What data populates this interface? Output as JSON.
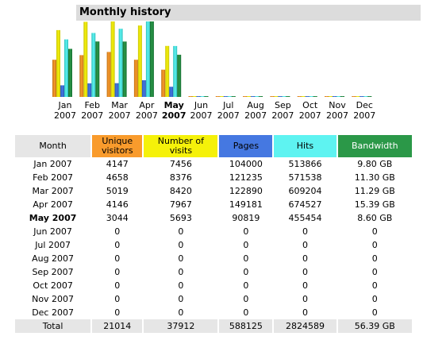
{
  "title": "Monthly history",
  "colors": {
    "uniq": "#f99b2c",
    "visits": "#f5f10a",
    "pages": "#4578e1",
    "hits": "#5ef3f1",
    "bandwidth": "#2b9848"
  },
  "chart_data": {
    "type": "bar",
    "categories": [
      "Jan 2007",
      "Feb 2007",
      "Mar 2007",
      "Apr 2007",
      "May 2007",
      "Jun 2007",
      "Jul 2007",
      "Aug 2007",
      "Sep 2007",
      "Oct 2007",
      "Nov 2007",
      "Dec 2007"
    ],
    "series": [
      {
        "name": "Unique visitors",
        "values": [
          4147,
          4658,
          5019,
          4146,
          3044,
          0,
          0,
          0,
          0,
          0,
          0,
          0
        ]
      },
      {
        "name": "Number of visits",
        "values": [
          7456,
          8376,
          8420,
          7967,
          5693,
          0,
          0,
          0,
          0,
          0,
          0,
          0
        ]
      },
      {
        "name": "Pages",
        "values": [
          104000,
          121235,
          122890,
          149181,
          90819,
          0,
          0,
          0,
          0,
          0,
          0,
          0
        ]
      },
      {
        "name": "Hits",
        "values": [
          513866,
          571538,
          609204,
          674527,
          455454,
          0,
          0,
          0,
          0,
          0,
          0,
          0
        ]
      },
      {
        "name": "Bandwidth",
        "values": [
          9.8,
          11.3,
          11.29,
          15.39,
          8.6,
          0,
          0,
          0,
          0,
          0,
          0,
          0
        ]
      }
    ]
  },
  "months": [
    {
      "m": "Jan",
      "y": "2007"
    },
    {
      "m": "Feb",
      "y": "2007"
    },
    {
      "m": "Mar",
      "y": "2007"
    },
    {
      "m": "Apr",
      "y": "2007"
    },
    {
      "m": "May",
      "y": "2007"
    },
    {
      "m": "Jun",
      "y": "2007"
    },
    {
      "m": "Jul",
      "y": "2007"
    },
    {
      "m": "Aug",
      "y": "2007"
    },
    {
      "m": "Sep",
      "y": "2007"
    },
    {
      "m": "Oct",
      "y": "2007"
    },
    {
      "m": "Nov",
      "y": "2007"
    },
    {
      "m": "Dec",
      "y": "2007"
    }
  ],
  "current_month_index": 4,
  "table": {
    "headers": [
      "Month",
      "Unique\nvisitors",
      "Number of\nvisits",
      "Pages",
      "Hits",
      "Bandwidth"
    ],
    "rows": [
      [
        "Jan 2007",
        "4147",
        "7456",
        "104000",
        "513866",
        "9.80 GB"
      ],
      [
        "Feb 2007",
        "4658",
        "8376",
        "121235",
        "571538",
        "11.30 GB"
      ],
      [
        "Mar 2007",
        "5019",
        "8420",
        "122890",
        "609204",
        "11.29 GB"
      ],
      [
        "Apr 2007",
        "4146",
        "7967",
        "149181",
        "674527",
        "15.39 GB"
      ],
      [
        "May 2007",
        "3044",
        "5693",
        "90819",
        "455454",
        "8.60 GB"
      ],
      [
        "Jun 2007",
        "0",
        "0",
        "0",
        "0",
        "0"
      ],
      [
        "Jul 2007",
        "0",
        "0",
        "0",
        "0",
        "0"
      ],
      [
        "Aug 2007",
        "0",
        "0",
        "0",
        "0",
        "0"
      ],
      [
        "Sep 2007",
        "0",
        "0",
        "0",
        "0",
        "0"
      ],
      [
        "Oct 2007",
        "0",
        "0",
        "0",
        "0",
        "0"
      ],
      [
        "Nov 2007",
        "0",
        "0",
        "0",
        "0",
        "0"
      ],
      [
        "Dec 2007",
        "0",
        "0",
        "0",
        "0",
        "0"
      ]
    ],
    "total": [
      "Total",
      "21014",
      "37912",
      "588125",
      "2824589",
      "56.39 GB"
    ]
  }
}
